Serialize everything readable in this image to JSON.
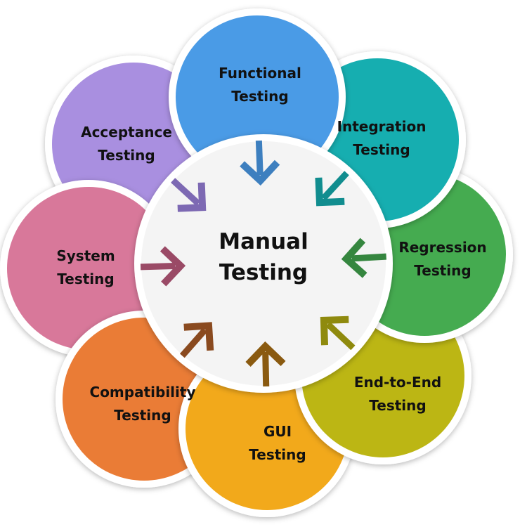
{
  "center": {
    "line1": "Manual",
    "line2": "Testing"
  },
  "petals": [
    {
      "line1": "Functional",
      "line2": "Testing",
      "color": "#4a9be6",
      "arrow": "#3d7fbf"
    },
    {
      "line1": "Integration",
      "line2": "Testing",
      "color": "#16aeb0",
      "arrow": "#118d8f"
    },
    {
      "line1": "Regression",
      "line2": "Testing",
      "color": "#45ab50",
      "arrow": "#35863f"
    },
    {
      "line1": "End-to-End",
      "line2": "Testing",
      "color": "#bcb614",
      "arrow": "#8f8a0e"
    },
    {
      "line1": "GUI",
      "line2": "Testing",
      "color": "#f2a91b",
      "arrow": "#8a5a10"
    },
    {
      "line1": "Compatibility",
      "line2": "Testing",
      "color": "#ea7c36",
      "arrow": "#8a4a1f"
    },
    {
      "line1": "System",
      "line2": "Testing",
      "color": "#d8789a",
      "arrow": "#9a4a66"
    },
    {
      "line1": "Acceptance",
      "line2": "Testing",
      "color": "#a98fe0",
      "arrow": "#7d69b3"
    }
  ],
  "colors": {
    "center_fill": "#f4f4f4",
    "center_ring": "#ffffff",
    "text": "#111111"
  }
}
